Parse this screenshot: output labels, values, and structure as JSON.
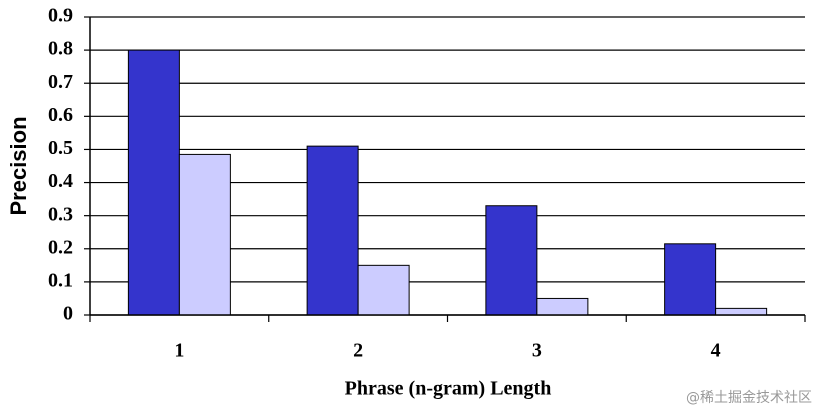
{
  "chart_data": {
    "type": "bar",
    "x_label": "Phrase (n-gram) Length",
    "y_label": "Precision",
    "categories": [
      "1",
      "2",
      "3",
      "4"
    ],
    "series": [
      {
        "color": "#3434cc",
        "values": [
          0.8,
          0.51,
          0.33,
          0.215
        ]
      },
      {
        "color": "#ccccff",
        "values": [
          0.485,
          0.15,
          0.05,
          0.02
        ]
      }
    ],
    "ylim": [
      0,
      0.9
    ],
    "yticks": [
      0,
      0.1,
      0.2,
      0.3,
      0.4,
      0.5,
      0.6,
      0.7,
      0.8,
      0.9
    ],
    "grid": true,
    "watermark": "@稀土掘金技术社区"
  }
}
